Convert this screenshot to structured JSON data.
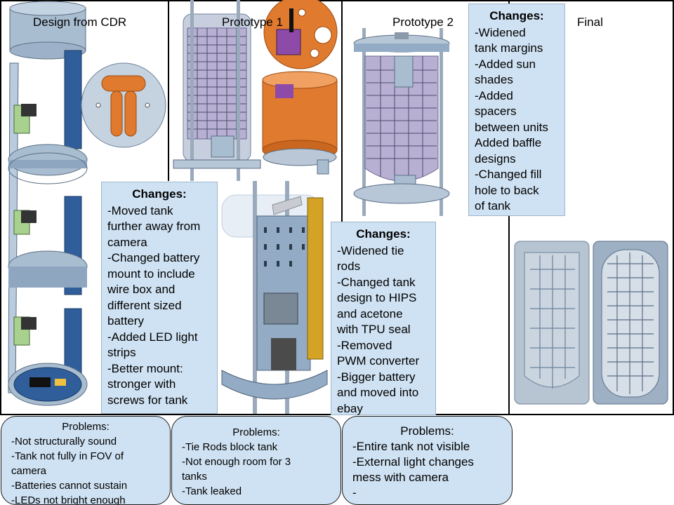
{
  "stages": [
    {
      "title": "Design from CDR"
    },
    {
      "title": "Prototype 1"
    },
    {
      "title": "Prototype 2"
    },
    {
      "title": "Final"
    }
  ],
  "changes": [
    {
      "heading": "Changes:",
      "lines": [
        "-Moved tank",
        "further away from",
        "camera",
        "-Changed battery",
        "mount to include",
        "wire box and",
        "different sized",
        "battery",
        "-Added LED light",
        "strips",
        "-Better mount:",
        "stronger with",
        "screws for tank"
      ]
    },
    {
      "heading": "Changes:",
      "lines": [
        "-Widened tie",
        "rods",
        "-Changed tank",
        "design to HIPS",
        "and acetone",
        "with TPU seal",
        "-Removed",
        "PWM converter",
        "-Bigger battery",
        "and moved into",
        "ebay"
      ]
    },
    {
      "heading": "Changes:",
      "lines": [
        "-Widened",
        "tank margins",
        "-Added sun",
        "shades",
        "-Added",
        "spacers",
        "between units",
        "Added baffle",
        "designs",
        "-Changed fill",
        "hole to back",
        "of tank"
      ]
    }
  ],
  "problems": [
    {
      "heading": "Problems:",
      "lines": [
        "-Not structurally sound",
        "-Tank not fully in FOV of",
        "camera",
        "-Batteries cannot sustain",
        "-LEDs not bright enough"
      ]
    },
    {
      "heading": "Problems:",
      "lines": [
        "-Tie Rods block tank",
        "-Not enough room for 3",
        "tanks",
        "-Tank leaked"
      ]
    },
    {
      "heading": "Problems:",
      "lines": [
        "-Entire tank not visible",
        "-External light changes",
        "mess with camera",
        "-"
      ]
    }
  ],
  "colors": {
    "note_fill": "#cfe2f3",
    "steel_blue": "#7e9ab8",
    "tank_purple": "#b7b0d2",
    "orange": "#e07a2e",
    "camera_green": "#a9d18e"
  }
}
